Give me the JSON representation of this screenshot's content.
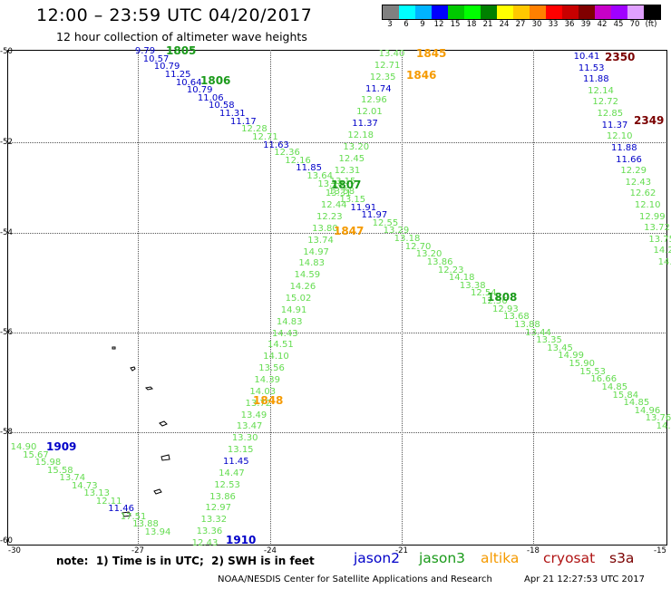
{
  "header": {
    "title": "12:00 – 23:59 UTC 04/20/2017",
    "subtitle": "12 hour collection of altimeter wave heights"
  },
  "color_scale": {
    "labels": [
      "3",
      "6",
      "9",
      "12",
      "15",
      "18",
      "21",
      "24",
      "27",
      "30",
      "33",
      "36",
      "39",
      "42",
      "45",
      "70",
      "(ft)"
    ],
    "colors": [
      "#808080",
      "#00ffff",
      "#00b4ff",
      "#0000ff",
      "#00c800",
      "#00ff00",
      "#008000",
      "#ffff00",
      "#ffc800",
      "#ff8000",
      "#ff0000",
      "#c80000",
      "#800000",
      "#c800c8",
      "#a000ff",
      "#e0a0ff",
      "#000000"
    ]
  },
  "axes": {
    "lat_labels": [
      "-50",
      "-52",
      "-54",
      "-56",
      "-58",
      "-60"
    ],
    "lon_labels": [
      "-30",
      "-27",
      "-24",
      "-21",
      "-18",
      "-15"
    ]
  },
  "passes": [
    {
      "time": "1805",
      "sat": "jason3"
    },
    {
      "time": "1806",
      "sat": "jason3"
    },
    {
      "time": "1807",
      "sat": "jason3"
    },
    {
      "time": "1808",
      "sat": "jason3"
    },
    {
      "time": "1845",
      "sat": "altika"
    },
    {
      "time": "1846",
      "sat": "altika"
    },
    {
      "time": "1847",
      "sat": "altika"
    },
    {
      "time": "1848",
      "sat": "altika"
    },
    {
      "time": "1909",
      "sat": "jason2"
    },
    {
      "time": "1910",
      "sat": "jason2"
    },
    {
      "time": "2349",
      "sat": "s3a"
    },
    {
      "time": "2350",
      "sat": "s3a"
    }
  ],
  "footer": {
    "note": "note:  1) Time is in UTC;  2) SWH is in feet",
    "legend": [
      {
        "name": "jason2",
        "color": "#0000c8"
      },
      {
        "name": "jason3",
        "color": "#1a9a1a"
      },
      {
        "name": "altika",
        "color": "#f59a00"
      },
      {
        "name": "cryosat",
        "color": "#b01414"
      },
      {
        "name": "s3a",
        "color": "#7a0000"
      }
    ],
    "credit": "NOAA/NESDIS Center for Satellite Applications and Research",
    "timestamp": "Apr 21 12:27:53 UTC 2017"
  },
  "tracks": {
    "jason3_nw": [
      "9.79",
      "10.57",
      "10.79",
      "11.25",
      "10.64",
      "10.79",
      "11.06",
      "10.58",
      "11.31",
      "11.17",
      "12.28",
      "12.71",
      "11.63",
      "12.36",
      "12.16",
      "11.85",
      "13.64",
      "13.28",
      "13.58",
      "13.15",
      "11.91",
      "11.97",
      "12.55",
      "13.29",
      "13.18",
      "12.70",
      "13.20",
      "13.86",
      "12.23",
      "14.18",
      "13.38",
      "12.54",
      "12.56",
      "12.93",
      "13.68",
      "13.88",
      "13.44",
      "13.35",
      "13.45",
      "14.99",
      "15.90",
      "15.53",
      "16.66",
      "14.85",
      "15.84",
      "14.85",
      "14.96",
      "13.76",
      "14.39"
    ],
    "altika_ne": [
      "13.40",
      "12.71",
      "12.35",
      "11.74",
      "12.96",
      "12.01",
      "11.37",
      "12.18",
      "13.20",
      "12.45",
      "12.31",
      "13.15",
      "13.31",
      "12.44",
      "12.23",
      "13.80",
      "13.74",
      "14.97",
      "14.83",
      "14.59",
      "14.26",
      "15.02",
      "14.91",
      "14.83",
      "14.43",
      "14.51",
      "14.10",
      "13.56",
      "14.39",
      "14.03",
      "13.72",
      "13.49",
      "13.47",
      "13.30",
      "13.15",
      "11.45",
      "14.47",
      "12.53",
      "13.86",
      "12.97",
      "13.32",
      "13.36",
      "12.43"
    ],
    "s3a_se": [
      "10.41",
      "11.53",
      "11.88",
      "12.14",
      "12.72",
      "12.85",
      "11.37",
      "12.10",
      "11.88",
      "11.66",
      "12.29",
      "12.43",
      "12.62",
      "12.10",
      "12.99",
      "13.72",
      "13.75",
      "14.24",
      "14.26"
    ],
    "jason2_sw": [
      "14.90",
      "15.67",
      "15.98",
      "15.58",
      "13.74",
      "14.73",
      "13.13",
      "12.11",
      "11.46",
      "17.51",
      "13.88",
      "13.94"
    ]
  }
}
